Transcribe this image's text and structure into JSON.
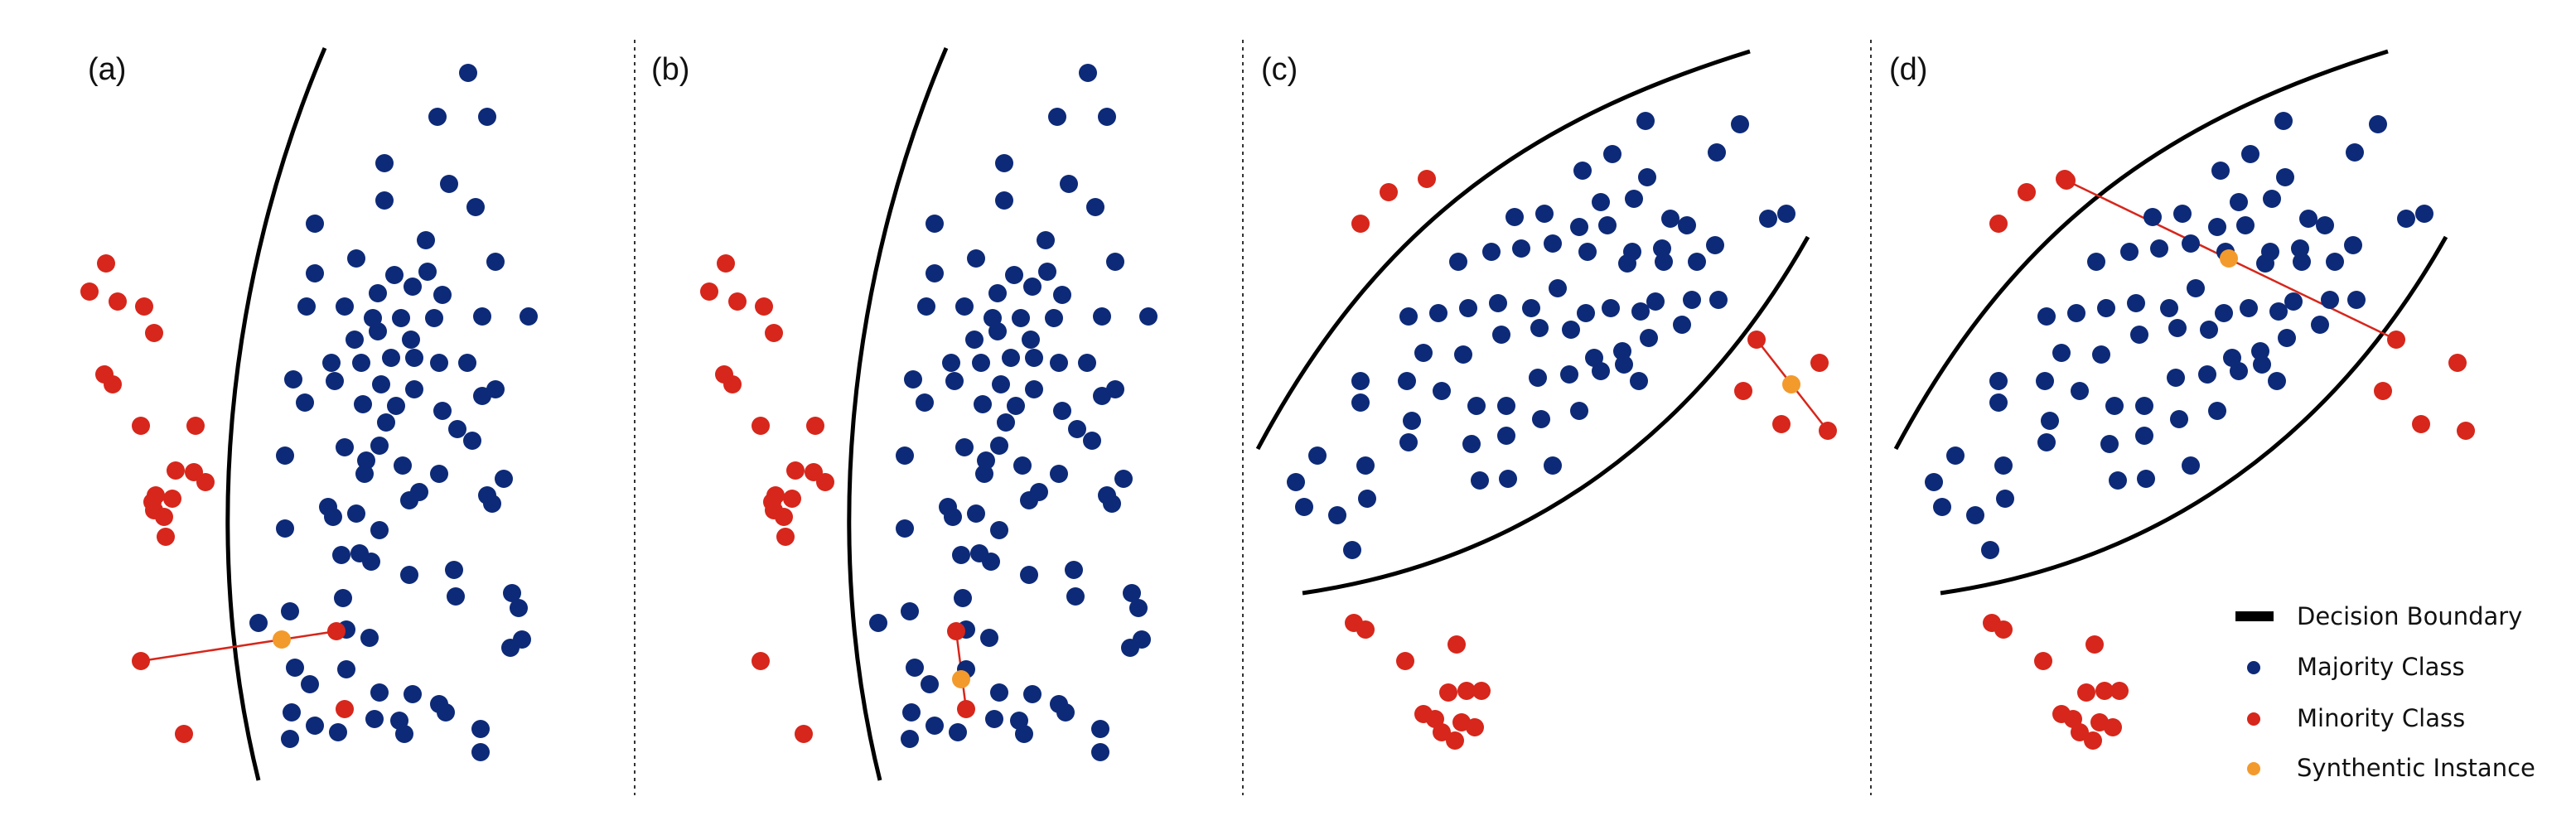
{
  "colors": {
    "majority": "#0d2a78",
    "minority": "#d7261b",
    "synthetic": "#f39a2c",
    "boundary": "#000000",
    "link": "#d7261b",
    "separator": "#333333"
  },
  "legend": {
    "boundary_label": "Decision Boundary",
    "majority_label": "Majority Class",
    "minority_label": "Minority Class",
    "synthetic_label": "Synthentic Instance"
  },
  "panels": [
    {
      "label": "(a)"
    },
    {
      "label": "(b)"
    },
    {
      "label": "(c)"
    },
    {
      "label": "(d)"
    }
  ]
}
